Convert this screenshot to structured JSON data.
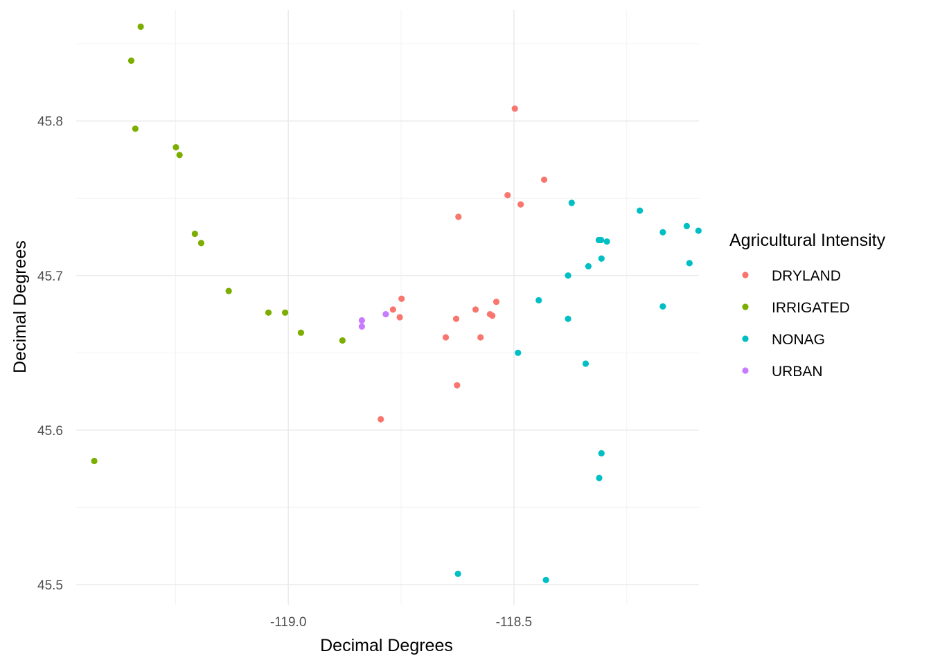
{
  "chart_data": {
    "type": "scatter",
    "xlabel": "Decimal Degrees",
    "ylabel": "Decimal Degrees",
    "xlim": [
      -119.47,
      -118.09
    ],
    "ylim": [
      45.487,
      45.872
    ],
    "x_ticks": [
      -119.0,
      -118.5
    ],
    "x_tick_labels": [
      "-119.0",
      "-118.5"
    ],
    "x_minor_ticks": [
      -119.25,
      -118.75,
      -118.25
    ],
    "y_ticks": [
      45.5,
      45.6,
      45.7,
      45.8
    ],
    "y_tick_labels": [
      "45.5",
      "45.6",
      "45.7",
      "45.8"
    ],
    "y_minor_ticks": [
      45.55,
      45.65,
      45.75,
      45.85
    ],
    "grid": true,
    "legend": {
      "title": "Agricultural Intensity",
      "position": "right"
    },
    "series": [
      {
        "name": "DRYLAND",
        "color": "#F8766D",
        "points": [
          [
            -118.498,
            45.808
          ],
          [
            -118.433,
            45.762
          ],
          [
            -118.514,
            45.752
          ],
          [
            -118.485,
            45.746
          ],
          [
            -118.623,
            45.738
          ],
          [
            -118.749,
            45.685
          ],
          [
            -118.539,
            45.683
          ],
          [
            -118.768,
            45.678
          ],
          [
            -118.585,
            45.678
          ],
          [
            -118.553,
            45.675
          ],
          [
            -118.548,
            45.674
          ],
          [
            -118.753,
            45.673
          ],
          [
            -118.628,
            45.672
          ],
          [
            -118.651,
            45.66
          ],
          [
            -118.574,
            45.66
          ],
          [
            -118.626,
            45.629
          ],
          [
            -118.795,
            45.607
          ]
        ]
      },
      {
        "name": "IRRIGATED",
        "color": "#7CAE00",
        "points": [
          [
            -119.327,
            45.861
          ],
          [
            -119.348,
            45.839
          ],
          [
            -119.339,
            45.795
          ],
          [
            -119.249,
            45.783
          ],
          [
            -119.241,
            45.778
          ],
          [
            -119.207,
            45.727
          ],
          [
            -119.193,
            45.721
          ],
          [
            -119.132,
            45.69
          ],
          [
            -119.044,
            45.676
          ],
          [
            -119.007,
            45.676
          ],
          [
            -118.972,
            45.663
          ],
          [
            -118.88,
            45.658
          ],
          [
            -119.43,
            45.58
          ]
        ]
      },
      {
        "name": "NONAG",
        "color": "#00BFC4",
        "points": [
          [
            -118.372,
            45.747
          ],
          [
            -118.221,
            45.742
          ],
          [
            -118.117,
            45.732
          ],
          [
            -118.091,
            45.729
          ],
          [
            -118.17,
            45.728
          ],
          [
            -118.312,
            45.723
          ],
          [
            -118.307,
            45.723
          ],
          [
            -118.294,
            45.722
          ],
          [
            -118.306,
            45.711
          ],
          [
            -118.111,
            45.708
          ],
          [
            -118.335,
            45.706
          ],
          [
            -118.38,
            45.7
          ],
          [
            -118.445,
            45.684
          ],
          [
            -118.17,
            45.68
          ],
          [
            -118.38,
            45.672
          ],
          [
            -118.491,
            45.65
          ],
          [
            -118.341,
            45.643
          ],
          [
            -118.306,
            45.585
          ],
          [
            -118.311,
            45.569
          ],
          [
            -118.624,
            45.507
          ],
          [
            -118.429,
            45.503
          ]
        ]
      },
      {
        "name": "URBAN",
        "color": "#C77CFF",
        "points": [
          [
            -118.784,
            45.675
          ],
          [
            -118.837,
            45.671
          ],
          [
            -118.837,
            45.667
          ]
        ]
      }
    ]
  }
}
